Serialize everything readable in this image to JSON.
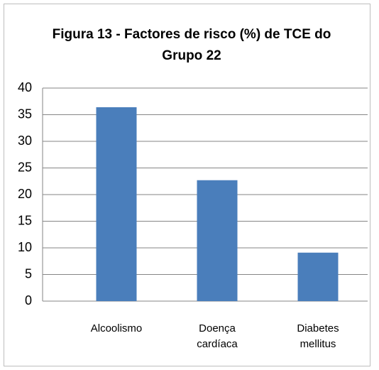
{
  "chart_data": {
    "type": "bar",
    "title": "Figura 13 - Factores de risco (%) de TCE do Grupo 22",
    "categories": [
      "Alcoolismo",
      "Doença cardíaca",
      "Diabetes mellitus"
    ],
    "values": [
      36.4,
      22.7,
      9.1
    ],
    "color": "#4a7ebb",
    "ylim": [
      0,
      40
    ],
    "yticks": [
      0,
      5,
      10,
      15,
      20,
      25,
      30,
      35,
      40
    ],
    "grid": true
  }
}
